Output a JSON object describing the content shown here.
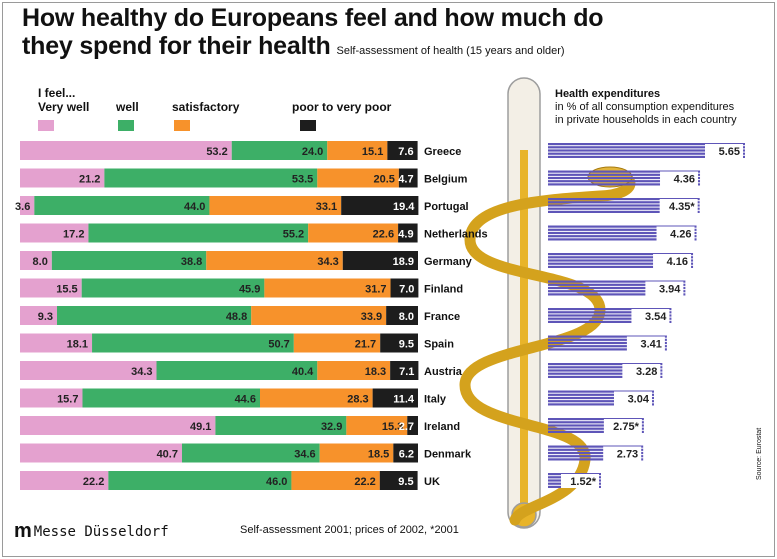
{
  "title": {
    "line1": "How healthy do Europeans feel and how much do",
    "line2": "they spend for their health",
    "subtitle": "Self-assessment of health (15 years and older)"
  },
  "legend": {
    "intro": "I feel...",
    "items": [
      {
        "label": "Very well",
        "color": "#e4a1cf"
      },
      {
        "label": "well",
        "color": "#3daf67"
      },
      {
        "label": "satisfactory",
        "color": "#f7922b"
      },
      {
        "label": "poor to very poor",
        "color": "#1d1d1d"
      }
    ]
  },
  "expenditure_header": {
    "title": "Health expenditures",
    "line1": "in % of all consumption expenditures",
    "line2": "in private households in each country"
  },
  "chart_data": [
    {
      "type": "bar",
      "stacked": true,
      "orientation": "horizontal",
      "categories": [
        "Greece",
        "Belgium",
        "Portugal",
        "Netherlands",
        "Germany",
        "Finland",
        "France",
        "Spain",
        "Austria",
        "Italy",
        "Ireland",
        "Denmark",
        "UK"
      ],
      "series": [
        {
          "name": "Very well",
          "color": "#e4a1cf",
          "values": [
            53.2,
            21.2,
            3.6,
            17.2,
            8.0,
            15.5,
            9.3,
            18.1,
            34.3,
            15.7,
            49.1,
            40.7,
            22.2
          ]
        },
        {
          "name": "well",
          "color": "#3daf67",
          "values": [
            24.0,
            53.5,
            44.0,
            55.2,
            38.8,
            45.9,
            48.8,
            50.7,
            40.4,
            44.6,
            32.9,
            34.6,
            46.0
          ]
        },
        {
          "name": "satisfactory",
          "color": "#f7922b",
          "values": [
            15.1,
            20.5,
            33.1,
            22.6,
            34.3,
            31.7,
            33.9,
            21.7,
            18.3,
            28.3,
            15.3,
            18.5,
            22.2
          ]
        },
        {
          "name": "poor to very poor",
          "color": "#1d1d1d",
          "values": [
            7.6,
            4.7,
            19.4,
            4.9,
            18.9,
            7.0,
            8.0,
            9.5,
            7.1,
            11.4,
            2.7,
            6.2,
            9.5
          ]
        }
      ],
      "value_labels": [
        [
          "53.2",
          "24.0",
          "15.1",
          "7.6"
        ],
        [
          "21.2",
          "53.5",
          "20.5",
          "4.7"
        ],
        [
          "3.6",
          "44.0",
          "33.1",
          "19.4"
        ],
        [
          "17.2",
          "55.2",
          "22.6",
          "4.9"
        ],
        [
          "8.0",
          "38.8",
          "34.3",
          "18.9"
        ],
        [
          "15.5",
          "45.9",
          "31.7",
          "7.0"
        ],
        [
          "9.3",
          "48.8",
          "33.9",
          "8.0"
        ],
        [
          "18.1",
          "50.7",
          "21.7",
          "9.5"
        ],
        [
          "34.3",
          "40.4",
          "18.3",
          "7.1"
        ],
        [
          "15.7",
          "44.6",
          "28.3",
          "11.4"
        ],
        [
          "49.1",
          "32.9",
          "15.3",
          "2.7"
        ],
        [
          "40.7",
          "34.6",
          "18.5",
          "6.2"
        ],
        [
          "22.2",
          "46.0",
          "22.2",
          "9.5"
        ]
      ],
      "xlim": [
        0,
        100
      ]
    },
    {
      "type": "bar",
      "orientation": "horizontal",
      "title": "Health expenditures",
      "categories": [
        "Greece",
        "Belgium",
        "Portugal",
        "Netherlands",
        "Germany",
        "Finland",
        "France",
        "Spain",
        "Austria",
        "Italy",
        "Ireland",
        "Denmark",
        "UK"
      ],
      "values": [
        5.65,
        4.36,
        4.35,
        4.26,
        4.16,
        3.94,
        3.54,
        3.41,
        3.28,
        3.04,
        2.75,
        2.73,
        1.52
      ],
      "value_labels": [
        "5.65",
        "4.36",
        "4.35*",
        "4.26",
        "4.16",
        "3.94",
        "3.54",
        "3.41",
        "3.28",
        "3.04",
        "2.75*",
        "2.73",
        "1.52*"
      ],
      "bar_color": "#5e55b8"
    }
  ],
  "footer": {
    "logo_mark": "m",
    "logo_name": "Messe Düsseldorf",
    "note": "Self-assessment 2001; prices of 2002, *2001",
    "source": "Source: Eurostat"
  }
}
